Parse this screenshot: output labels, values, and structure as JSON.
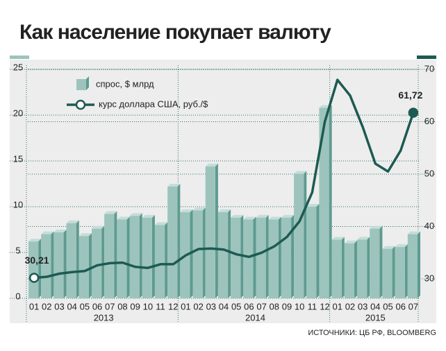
{
  "chart_data": {
    "type": "bar-line",
    "title": "Как население покупает валюту",
    "source": "ИСТОЧНИКИ: ЦБ РФ, BLOOMBERG",
    "categories": [
      "01",
      "02",
      "03",
      "04",
      "05",
      "06",
      "07",
      "08",
      "09",
      "10",
      "11",
      "12",
      "01",
      "02",
      "03",
      "04",
      "05",
      "06",
      "07",
      "08",
      "09",
      "10",
      "11",
      "12",
      "01",
      "02",
      "03",
      "04",
      "05",
      "06",
      "07"
    ],
    "year_labels": [
      "2013",
      "2014",
      "2015"
    ],
    "series": [
      {
        "name": "спрос, $ млрд",
        "color": "#9cc4bc",
        "type": "bar",
        "values": [
          6.2,
          7.0,
          7.2,
          8.2,
          6.8,
          7.6,
          9.2,
          8.6,
          9.0,
          8.8,
          8.0,
          12.2,
          9.4,
          9.6,
          14.4,
          9.4,
          8.8,
          8.6,
          8.8,
          8.6,
          8.8,
          13.6,
          10.0,
          20.8,
          6.4,
          6.0,
          6.4,
          7.6,
          5.4,
          5.6,
          7.0
        ]
      },
      {
        "name": "курс доллара США, руб./$",
        "color": "#1d5a52",
        "type": "line",
        "axis": "y2",
        "values": [
          30.21,
          30.4,
          31.0,
          31.3,
          31.5,
          32.6,
          33.0,
          33.1,
          32.3,
          32.1,
          32.8,
          32.8,
          34.5,
          35.7,
          35.8,
          35.6,
          34.7,
          34.2,
          35.0,
          36.2,
          38.0,
          41.0,
          46.5,
          60.0,
          68.0,
          65.0,
          59.0,
          52.0,
          50.5,
          54.5,
          61.72
        ],
        "value_labels": [
          "30,21",
          null,
          null,
          null,
          null,
          null,
          null,
          null,
          null,
          null,
          null,
          null,
          null,
          null,
          null,
          null,
          null,
          null,
          null,
          null,
          null,
          null,
          null,
          null,
          null,
          null,
          null,
          null,
          null,
          null,
          "61,72"
        ]
      }
    ],
    "ylim": [
      0,
      25
    ],
    "yticks": [
      0,
      5,
      10,
      15,
      20,
      25
    ],
    "y2lim": [
      26.3,
      70
    ],
    "y2ticks": [
      30,
      40,
      50,
      60,
      70
    ],
    "grid": true
  }
}
